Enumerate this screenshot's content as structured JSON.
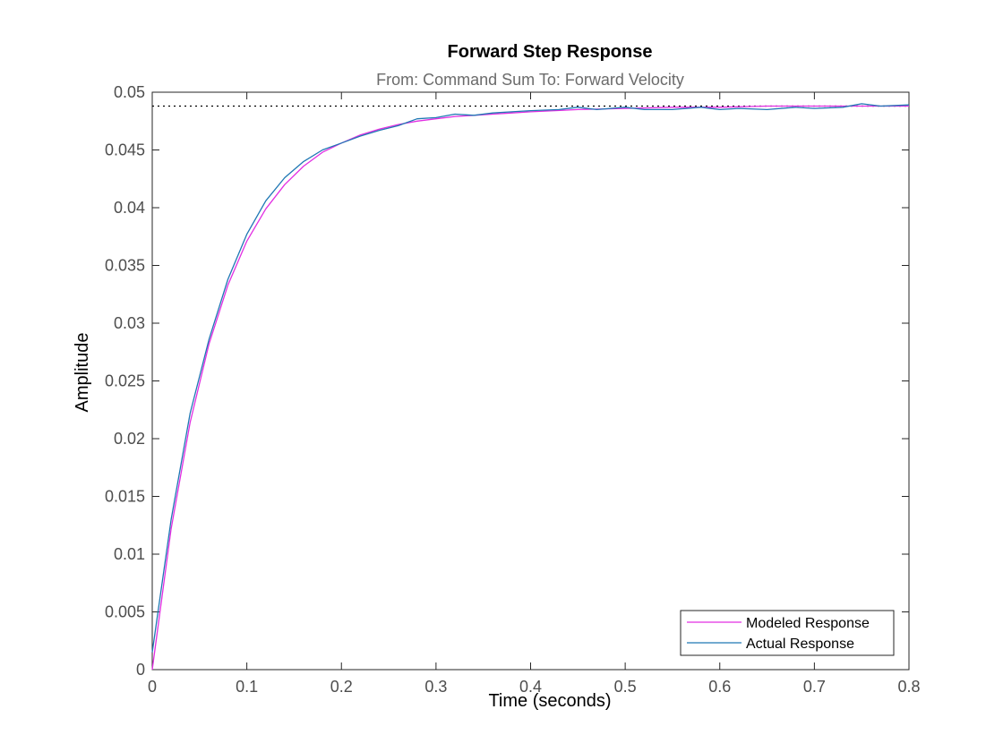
{
  "chart_data": {
    "type": "line",
    "title": "Forward Step Response",
    "subtitle": "From: Command Sum  To: Forward Velocity",
    "xlabel": "Time (seconds)",
    "ylabel": "Amplitude",
    "xlim": [
      0,
      0.8
    ],
    "ylim": [
      0,
      0.05
    ],
    "xticks": [
      "0",
      "0.1",
      "0.2",
      "0.3",
      "0.4",
      "0.5",
      "0.6",
      "0.7",
      "0.8"
    ],
    "yticks": [
      "0",
      "0.005",
      "0.01",
      "0.015",
      "0.02",
      "0.025",
      "0.03",
      "0.035",
      "0.04",
      "0.045",
      "0.05"
    ],
    "grid": false,
    "legend_position": "bottom-right",
    "steady_state": 0.0488,
    "steady_state_style": "dotted",
    "series": [
      {
        "name": "Modeled Response",
        "color": "#e22ee2",
        "x": [
          0,
          0.02,
          0.04,
          0.06,
          0.08,
          0.1,
          0.12,
          0.14,
          0.16,
          0.18,
          0.2,
          0.22,
          0.24,
          0.26,
          0.28,
          0.3,
          0.32,
          0.34,
          0.36,
          0.38,
          0.4,
          0.45,
          0.5,
          0.55,
          0.6,
          0.65,
          0.7,
          0.75,
          0.8
        ],
        "y": [
          0,
          0.0122,
          0.0214,
          0.0282,
          0.0333,
          0.0371,
          0.0399,
          0.042,
          0.0436,
          0.0448,
          0.0456,
          0.0463,
          0.0468,
          0.0472,
          0.0475,
          0.0477,
          0.0479,
          0.048,
          0.0481,
          0.0482,
          0.0483,
          0.0485,
          0.0486,
          0.0487,
          0.0487,
          0.0488,
          0.0488,
          0.0488,
          0.0488
        ]
      },
      {
        "name": "Actual Response",
        "color": "#1f77b4",
        "x": [
          0,
          0.02,
          0.04,
          0.06,
          0.08,
          0.1,
          0.12,
          0.14,
          0.16,
          0.18,
          0.2,
          0.22,
          0.24,
          0.26,
          0.28,
          0.3,
          0.32,
          0.34,
          0.36,
          0.38,
          0.4,
          0.43,
          0.45,
          0.47,
          0.5,
          0.52,
          0.55,
          0.58,
          0.6,
          0.62,
          0.65,
          0.68,
          0.7,
          0.73,
          0.75,
          0.77,
          0.8
        ],
        "y": [
          0.0015,
          0.013,
          0.0222,
          0.0286,
          0.0338,
          0.0377,
          0.0406,
          0.0426,
          0.044,
          0.045,
          0.0456,
          0.0462,
          0.0467,
          0.0471,
          0.0477,
          0.0478,
          0.0481,
          0.048,
          0.0482,
          0.0483,
          0.0484,
          0.0485,
          0.0487,
          0.0485,
          0.0487,
          0.0485,
          0.0485,
          0.0487,
          0.0485,
          0.0486,
          0.0485,
          0.0487,
          0.0486,
          0.0487,
          0.049,
          0.0488,
          0.0489
        ]
      }
    ]
  }
}
